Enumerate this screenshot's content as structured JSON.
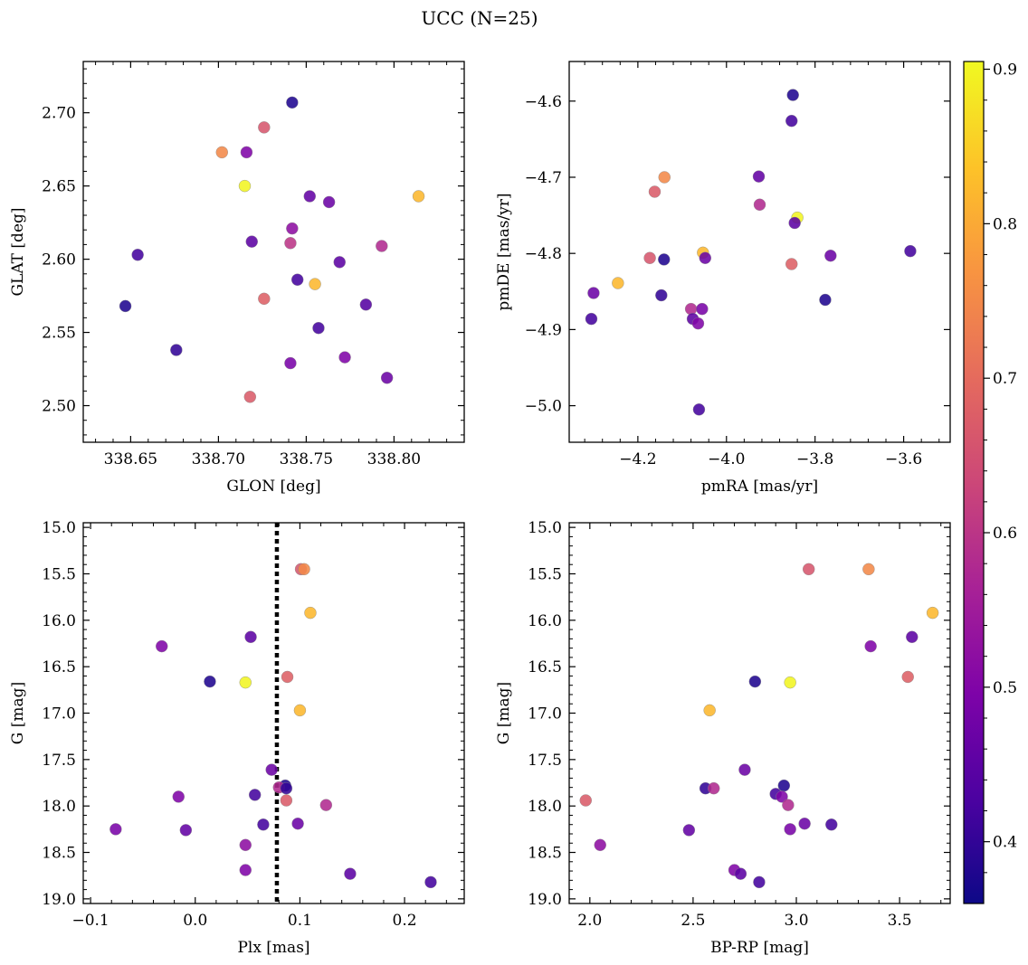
{
  "figure": {
    "title": "UCC (N=25)"
  },
  "colorbar": {
    "range": [
      0.36,
      0.905
    ],
    "ticks": [
      "0.4",
      "0.5",
      "0.6",
      "0.7",
      "0.8",
      "0.9"
    ],
    "tick_values": [
      0.4,
      0.5,
      0.6,
      0.7,
      0.8,
      0.9
    ],
    "colormap": "plasma"
  },
  "chart_data": [
    {
      "type": "scatter",
      "xlabel": "GLON [deg]",
      "ylabel": "GLAT [deg]",
      "xlim": [
        338.623,
        338.84
      ],
      "ylim": [
        2.475,
        2.735
      ],
      "xticks": [
        "338.65",
        "338.70",
        "338.75",
        "338.80"
      ],
      "xtick_values": [
        338.65,
        338.7,
        338.75,
        338.8
      ],
      "yticks": [
        "2.50",
        "2.55",
        "2.60",
        "2.65",
        "2.70"
      ],
      "ytick_values": [
        2.5,
        2.55,
        2.6,
        2.65,
        2.7
      ],
      "points": [
        {
          "x": 338.742,
          "y": 2.707,
          "c": 0.38
        },
        {
          "x": 338.726,
          "y": 2.69,
          "c": 0.66
        },
        {
          "x": 338.702,
          "y": 2.673,
          "c": 0.75
        },
        {
          "x": 338.716,
          "y": 2.673,
          "c": 0.5
        },
        {
          "x": 338.715,
          "y": 2.65,
          "c": 0.9
        },
        {
          "x": 338.814,
          "y": 2.643,
          "c": 0.82
        },
        {
          "x": 338.752,
          "y": 2.643,
          "c": 0.46
        },
        {
          "x": 338.763,
          "y": 2.639,
          "c": 0.47
        },
        {
          "x": 338.742,
          "y": 2.621,
          "c": 0.52
        },
        {
          "x": 338.719,
          "y": 2.612,
          "c": 0.45
        },
        {
          "x": 338.741,
          "y": 2.611,
          "c": 0.6
        },
        {
          "x": 338.793,
          "y": 2.609,
          "c": 0.58
        },
        {
          "x": 338.654,
          "y": 2.603,
          "c": 0.42
        },
        {
          "x": 338.769,
          "y": 2.598,
          "c": 0.45
        },
        {
          "x": 338.745,
          "y": 2.586,
          "c": 0.42
        },
        {
          "x": 338.755,
          "y": 2.583,
          "c": 0.82
        },
        {
          "x": 338.726,
          "y": 2.573,
          "c": 0.68
        },
        {
          "x": 338.784,
          "y": 2.569,
          "c": 0.44
        },
        {
          "x": 338.647,
          "y": 2.568,
          "c": 0.38
        },
        {
          "x": 338.757,
          "y": 2.553,
          "c": 0.42
        },
        {
          "x": 338.676,
          "y": 2.538,
          "c": 0.4
        },
        {
          "x": 338.772,
          "y": 2.533,
          "c": 0.5
        },
        {
          "x": 338.741,
          "y": 2.529,
          "c": 0.49
        },
        {
          "x": 338.796,
          "y": 2.519,
          "c": 0.47
        },
        {
          "x": 338.718,
          "y": 2.506,
          "c": 0.67
        }
      ]
    },
    {
      "type": "scatter",
      "xlabel": "pmRA [mas/yr]",
      "ylabel": "pmDE [mas/yr]",
      "xlim": [
        -4.355,
        -3.495
      ],
      "ylim": [
        -5.048,
        -4.548
      ],
      "xticks": [
        "−4.2",
        "−4.0",
        "−3.8",
        "−3.6"
      ],
      "xtick_values": [
        -4.2,
        -4.0,
        -3.8,
        -3.6
      ],
      "yticks": [
        "−4.6",
        "−4.7",
        "−4.8",
        "−4.9",
        "−5.0"
      ],
      "ytick_values": [
        -4.6,
        -4.7,
        -4.8,
        -4.9,
        -5.0
      ],
      "points": [
        {
          "x": -3.85,
          "y": -4.592,
          "c": 0.38
        },
        {
          "x": -3.853,
          "y": -4.626,
          "c": 0.42
        },
        {
          "x": -4.14,
          "y": -4.7,
          "c": 0.75
        },
        {
          "x": -3.927,
          "y": -4.699,
          "c": 0.46
        },
        {
          "x": -4.162,
          "y": -4.719,
          "c": 0.67
        },
        {
          "x": -3.925,
          "y": -4.736,
          "c": 0.58
        },
        {
          "x": -3.84,
          "y": -4.753,
          "c": 0.9
        },
        {
          "x": -3.846,
          "y": -4.76,
          "c": 0.45
        },
        {
          "x": -4.053,
          "y": -4.799,
          "c": 0.82
        },
        {
          "x": -3.585,
          "y": -4.797,
          "c": 0.42
        },
        {
          "x": -3.765,
          "y": -4.803,
          "c": 0.47
        },
        {
          "x": -4.048,
          "y": -4.806,
          "c": 0.47
        },
        {
          "x": -4.173,
          "y": -4.806,
          "c": 0.66
        },
        {
          "x": -4.141,
          "y": -4.808,
          "c": 0.38
        },
        {
          "x": -3.853,
          "y": -4.814,
          "c": 0.68
        },
        {
          "x": -4.245,
          "y": -4.839,
          "c": 0.82
        },
        {
          "x": -4.3,
          "y": -4.852,
          "c": 0.47
        },
        {
          "x": -4.147,
          "y": -4.855,
          "c": 0.4
        },
        {
          "x": -3.777,
          "y": -4.861,
          "c": 0.38
        },
        {
          "x": -4.08,
          "y": -4.873,
          "c": 0.58
        },
        {
          "x": -4.055,
          "y": -4.873,
          "c": 0.49
        },
        {
          "x": -4.305,
          "y": -4.886,
          "c": 0.42
        },
        {
          "x": -4.076,
          "y": -4.886,
          "c": 0.45
        },
        {
          "x": -4.064,
          "y": -4.892,
          "c": 0.5
        },
        {
          "x": -4.062,
          "y": -5.005,
          "c": 0.42
        }
      ]
    },
    {
      "type": "scatter",
      "xlabel": "Plx [mas]",
      "ylabel": "G [mag]",
      "xlim": [
        -0.107,
        0.257
      ],
      "ylim": [
        19.05,
        14.95
      ],
      "xticks": [
        "−0.1",
        "0.0",
        "0.1",
        "0.2"
      ],
      "xtick_values": [
        -0.1,
        0.0,
        0.1,
        0.2
      ],
      "yticks": [
        "15.0",
        "15.5",
        "16.0",
        "16.5",
        "17.0",
        "17.5",
        "18.0",
        "18.5",
        "19.0"
      ],
      "ytick_values": [
        15.0,
        15.5,
        16.0,
        16.5,
        17.0,
        17.5,
        18.0,
        18.5,
        19.0
      ],
      "vline": 0.078,
      "points": [
        {
          "x": 0.101,
          "y": 15.45,
          "c": 0.66
        },
        {
          "x": 0.104,
          "y": 15.45,
          "c": 0.75
        },
        {
          "x": 0.11,
          "y": 15.92,
          "c": 0.82
        },
        {
          "x": -0.032,
          "y": 16.28,
          "c": 0.5
        },
        {
          "x": 0.053,
          "y": 16.18,
          "c": 0.45
        },
        {
          "x": 0.014,
          "y": 16.66,
          "c": 0.38
        },
        {
          "x": 0.048,
          "y": 16.67,
          "c": 0.9
        },
        {
          "x": 0.088,
          "y": 16.61,
          "c": 0.68
        },
        {
          "x": 0.1,
          "y": 16.97,
          "c": 0.82
        },
        {
          "x": 0.073,
          "y": 17.61,
          "c": 0.47
        },
        {
          "x": 0.086,
          "y": 17.78,
          "c": 0.38
        },
        {
          "x": 0.08,
          "y": 17.8,
          "c": 0.58
        },
        {
          "x": 0.087,
          "y": 17.81,
          "c": 0.4
        },
        {
          "x": -0.016,
          "y": 17.9,
          "c": 0.5
        },
        {
          "x": 0.057,
          "y": 17.88,
          "c": 0.42
        },
        {
          "x": 0.087,
          "y": 17.94,
          "c": 0.67
        },
        {
          "x": 0.125,
          "y": 17.99,
          "c": 0.58
        },
        {
          "x": 0.065,
          "y": 18.2,
          "c": 0.42
        },
        {
          "x": 0.098,
          "y": 18.19,
          "c": 0.47
        },
        {
          "x": -0.076,
          "y": 18.25,
          "c": 0.49
        },
        {
          "x": -0.009,
          "y": 18.26,
          "c": 0.46
        },
        {
          "x": 0.048,
          "y": 18.42,
          "c": 0.52
        },
        {
          "x": 0.048,
          "y": 18.69,
          "c": 0.5
        },
        {
          "x": 0.148,
          "y": 18.73,
          "c": 0.45
        },
        {
          "x": 0.225,
          "y": 18.82,
          "c": 0.42
        }
      ]
    },
    {
      "type": "scatter",
      "xlabel": "BP-RP [mag]",
      "ylabel": "G [mag]",
      "xlim": [
        1.9,
        3.745
      ],
      "ylim": [
        19.05,
        14.95
      ],
      "xticks": [
        "2.0",
        "2.5",
        "3.0",
        "3.5"
      ],
      "xtick_values": [
        2.0,
        2.5,
        3.0,
        3.5
      ],
      "yticks": [
        "15.0",
        "15.5",
        "16.0",
        "16.5",
        "17.0",
        "17.5",
        "18.0",
        "18.5",
        "19.0"
      ],
      "ytick_values": [
        15.0,
        15.5,
        16.0,
        16.5,
        17.0,
        17.5,
        18.0,
        18.5,
        19.0
      ],
      "points": [
        {
          "x": 3.06,
          "y": 15.45,
          "c": 0.66
        },
        {
          "x": 3.35,
          "y": 15.45,
          "c": 0.75
        },
        {
          "x": 3.66,
          "y": 15.92,
          "c": 0.82
        },
        {
          "x": 3.56,
          "y": 16.18,
          "c": 0.45
        },
        {
          "x": 3.36,
          "y": 16.28,
          "c": 0.5
        },
        {
          "x": 3.54,
          "y": 16.61,
          "c": 0.68
        },
        {
          "x": 2.8,
          "y": 16.66,
          "c": 0.38
        },
        {
          "x": 2.97,
          "y": 16.67,
          "c": 0.9
        },
        {
          "x": 2.58,
          "y": 16.97,
          "c": 0.82
        },
        {
          "x": 2.75,
          "y": 17.61,
          "c": 0.47
        },
        {
          "x": 2.56,
          "y": 17.81,
          "c": 0.4
        },
        {
          "x": 2.6,
          "y": 17.81,
          "c": 0.58
        },
        {
          "x": 2.94,
          "y": 17.78,
          "c": 0.38
        },
        {
          "x": 2.9,
          "y": 17.87,
          "c": 0.42
        },
        {
          "x": 2.93,
          "y": 17.9,
          "c": 0.5
        },
        {
          "x": 2.96,
          "y": 17.99,
          "c": 0.58
        },
        {
          "x": 1.98,
          "y": 17.94,
          "c": 0.67
        },
        {
          "x": 3.04,
          "y": 18.19,
          "c": 0.47
        },
        {
          "x": 3.17,
          "y": 18.2,
          "c": 0.42
        },
        {
          "x": 2.97,
          "y": 18.25,
          "c": 0.49
        },
        {
          "x": 2.48,
          "y": 18.26,
          "c": 0.46
        },
        {
          "x": 2.05,
          "y": 18.42,
          "c": 0.52
        },
        {
          "x": 2.7,
          "y": 18.69,
          "c": 0.5
        },
        {
          "x": 2.73,
          "y": 18.73,
          "c": 0.45
        },
        {
          "x": 2.82,
          "y": 18.82,
          "c": 0.42
        }
      ]
    }
  ]
}
